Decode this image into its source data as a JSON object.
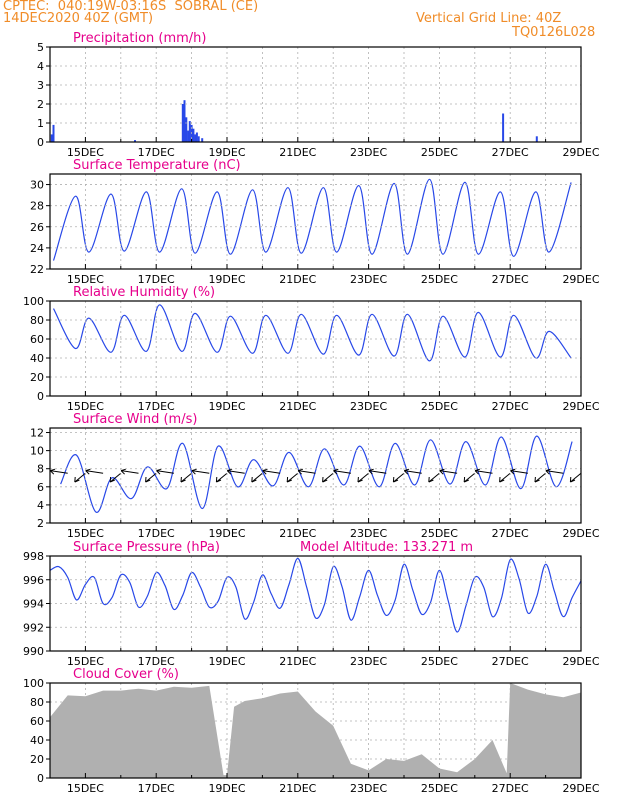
{
  "header": {
    "line1": "CPTEC:  040:19W-03:16S  SOBRAL (CE)",
    "line2": "14DEC2020 40Z (GMT)",
    "grid_note": "Vertical Grid Line: 40Z",
    "code": "TQ0126L028"
  },
  "colors": {
    "header": "#f08c28",
    "title": "#e6008c",
    "series": "#2848e8",
    "cloud": "#b0b0b0",
    "grid": "#b0b0b0"
  },
  "x_ticks": [
    "15DEC",
    "17DEC",
    "19DEC",
    "21DEC",
    "23DEC",
    "25DEC",
    "27DEC",
    "29DEC"
  ],
  "chart_data": [
    {
      "type": "bar",
      "title": "Precipitation (mm/h)",
      "ylim": [
        0,
        5
      ],
      "yticks": [
        "0",
        "1",
        "2",
        "3",
        "4",
        "5"
      ],
      "x_range_days": [
        14.0,
        29.0
      ],
      "x": [
        14.05,
        14.1,
        16.4,
        17.75,
        17.8,
        17.85,
        17.9,
        17.95,
        18.0,
        18.05,
        18.1,
        18.15,
        18.2,
        18.3,
        26.8,
        27.75
      ],
      "values": [
        0.4,
        0.9,
        0.1,
        2.0,
        2.2,
        1.3,
        0.6,
        1.1,
        0.9,
        0.7,
        0.4,
        0.5,
        0.3,
        0.2,
        1.5,
        0.3
      ]
    },
    {
      "type": "line",
      "title": "Surface Temperature (nC)",
      "ylim": [
        22,
        31
      ],
      "yticks": [
        "22",
        "24",
        "26",
        "28",
        "30"
      ],
      "daily_min": [
        22.8,
        23.6,
        23.7,
        23.6,
        23.5,
        23.4,
        23.6,
        23.5,
        23.6,
        23.4,
        23.4,
        23.4,
        23.4,
        23.2,
        23.6
      ],
      "daily_max": [
        28.9,
        29.1,
        29.3,
        29.6,
        29.3,
        29.5,
        29.7,
        29.7,
        29.9,
        30.1,
        30.5,
        30.2,
        29.3,
        29.3,
        30.2
      ]
    },
    {
      "type": "line",
      "title": "Relative Humidity (%)",
      "ylim": [
        0,
        100
      ],
      "yticks": [
        "0",
        "20",
        "40",
        "60",
        "80",
        "100"
      ],
      "daily_max": [
        92,
        82,
        85,
        96,
        87,
        84,
        85,
        86,
        85,
        86,
        86,
        84,
        88,
        85,
        68
      ],
      "daily_min": [
        50,
        46,
        47,
        47,
        46,
        45,
        45,
        44,
        43,
        42,
        37,
        41,
        41,
        40,
        40
      ]
    },
    {
      "type": "line",
      "title": "Surface Wind (m/s)",
      "ylim": [
        2,
        12.5
      ],
      "yticks": [
        "2",
        "4",
        "6",
        "8",
        "10",
        "12"
      ],
      "daily_max": [
        9.5,
        7.0,
        8.2,
        10.8,
        10.5,
        9.0,
        9.8,
        10.2,
        10.5,
        10.8,
        11.2,
        11.0,
        11.5,
        11.6,
        11.0
      ],
      "daily_min": [
        6.3,
        3.2,
        4.7,
        5.8,
        3.6,
        6.0,
        6.1,
        6.0,
        6.2,
        6.0,
        6.2,
        6.3,
        6.2,
        5.8,
        6.0
      ]
    },
    {
      "type": "line",
      "title": "Surface Pressure (hPa)",
      "annotation": "Model Altitude: 133.271  m",
      "ylim": [
        990,
        998
      ],
      "yticks": [
        "990",
        "992",
        "994",
        "996",
        "998"
      ],
      "x": [
        14.0,
        14.25,
        14.5,
        14.75,
        15.0,
        15.25,
        15.5,
        15.75,
        16.0,
        16.25,
        16.5,
        16.75,
        17.0,
        17.25,
        17.5,
        17.75,
        18.0,
        18.25,
        18.5,
        18.75,
        19.0,
        19.25,
        19.5,
        19.75,
        20.0,
        20.25,
        20.5,
        20.75,
        21.0,
        21.25,
        21.5,
        21.75,
        22.0,
        22.25,
        22.5,
        22.75,
        23.0,
        23.25,
        23.5,
        23.75,
        24.0,
        24.25,
        24.5,
        24.75,
        25.0,
        25.25,
        25.5,
        25.75,
        26.0,
        26.25,
        26.5,
        26.75,
        27.0,
        27.25,
        27.5,
        27.75,
        28.0,
        28.25,
        28.5,
        28.75,
        29.0
      ],
      "values": [
        996.8,
        997.1,
        996.2,
        994.3,
        995.6,
        996.2,
        994.0,
        994.5,
        996.4,
        995.8,
        993.7,
        994.6,
        996.6,
        995.5,
        993.5,
        994.7,
        996.6,
        995.4,
        993.7,
        994.2,
        996.2,
        995.4,
        992.7,
        994.1,
        996.4,
        994.8,
        993.6,
        995.6,
        997.8,
        995.4,
        992.8,
        993.9,
        997.1,
        995.4,
        992.6,
        994.6,
        996.8,
        994.7,
        993.0,
        994.3,
        997.3,
        995.1,
        993.1,
        994.1,
        996.8,
        994.2,
        991.6,
        993.8,
        996.2,
        995.4,
        992.9,
        994.4,
        997.7,
        996.1,
        993.2,
        994.6,
        997.3,
        995.0,
        992.9,
        994.5,
        995.9
      ]
    },
    {
      "type": "area",
      "title": "Cloud Cover (%)",
      "ylim": [
        0,
        100
      ],
      "yticks": [
        "0",
        "20",
        "40",
        "60",
        "80",
        "100"
      ],
      "x": [
        14.0,
        14.5,
        15.0,
        15.5,
        16.0,
        16.5,
        17.0,
        17.5,
        18.0,
        18.5,
        18.9,
        19.0,
        19.2,
        19.5,
        20.0,
        20.5,
        21.0,
        21.5,
        22.0,
        22.5,
        23.0,
        23.5,
        24.0,
        24.5,
        25.0,
        25.5,
        26.0,
        26.5,
        26.9,
        27.0,
        27.5,
        28.0,
        28.5,
        29.0
      ],
      "values": [
        64,
        87,
        86,
        92,
        92,
        94,
        92,
        96,
        95,
        97,
        3,
        3,
        75,
        81,
        84,
        89,
        91,
        70,
        55,
        15,
        8,
        20,
        18,
        25,
        10,
        6,
        20,
        40,
        5,
        100,
        93,
        88,
        85,
        90
      ]
    }
  ],
  "wind_vector_days": [
    14.5,
    15.0,
    15.5,
    16.0,
    16.5,
    17.0,
    17.5,
    18.0,
    18.5,
    19.0,
    19.5,
    20.0,
    20.5,
    21.0,
    21.5,
    22.0,
    22.5,
    23.0,
    23.5,
    24.0,
    24.5,
    25.0,
    25.5,
    26.0,
    26.5,
    27.0,
    27.5,
    28.0,
    28.5,
    29.0
  ]
}
